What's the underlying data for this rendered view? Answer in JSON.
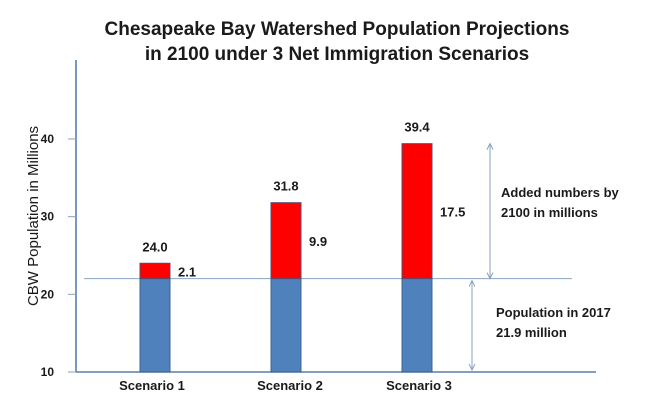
{
  "chart_data": {
    "type": "bar",
    "stacked": true,
    "title": "Chesapeake Bay Watershed Population Projections",
    "subtitle": "in 2100 under 3 Net Immigration Scenarios",
    "xlabel": "",
    "ylabel": "CBW Population in Millions",
    "ylim": [
      10,
      50
    ],
    "yticks": [
      10,
      20,
      30,
      40
    ],
    "grid": false,
    "categories": [
      "Scenario 1",
      "Scenario 2",
      "Scenario 3"
    ],
    "series": [
      {
        "name": "Population in 2017",
        "values": [
          21.9,
          21.9,
          21.9
        ],
        "color": "#4f81bd"
      },
      {
        "name": "Added numbers by 2100",
        "values": [
          2.1,
          9.9,
          17.5
        ],
        "color": "#ff0000"
      }
    ],
    "totals": [
      24.0,
      31.8,
      39.4
    ],
    "total_labels": [
      "24.0",
      "31.8",
      "39.4"
    ],
    "added_labels": [
      "2.1",
      "9.9",
      "17.5"
    ],
    "reference_line": 21.9,
    "annotations": {
      "added": [
        "Added numbers by",
        "2100 in millions"
      ],
      "base": [
        "Population in 2017",
        "21.9 million"
      ]
    }
  }
}
